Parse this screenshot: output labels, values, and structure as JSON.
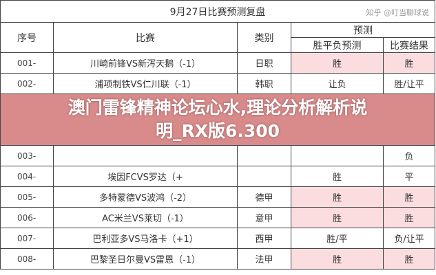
{
  "title": "9月27日比赛预测复盘",
  "headers": {
    "seq": "序号",
    "match": "比赛",
    "category": "类别",
    "prediction": "预测",
    "wdl_prediction": "胜平负预测",
    "result": "比赛结果"
  },
  "rows": [
    {
      "seq": "001-",
      "match": "川崎前锋VS新泻天鹅（-1）",
      "category": "日职",
      "prediction": "胜",
      "result": "胜",
      "highlight": true
    },
    {
      "seq": "002-",
      "match": "浦项制铁VS仁川联（-1）",
      "category": "韩职",
      "prediction": "让负",
      "result": "胜/让平",
      "highlight": false
    },
    {
      "seq": "003-",
      "match": "",
      "category": "",
      "prediction": "",
      "result": "负",
      "highlight": false
    },
    {
      "seq": "004-",
      "match": "埃因FCVS罗达（+",
      "category": "",
      "prediction": "胜",
      "result": "平",
      "highlight": false
    },
    {
      "seq": "005-",
      "match": "多特蒙德VS波鸿（-2）",
      "category": "德甲",
      "prediction": "胜",
      "result": "胜",
      "highlight": true
    },
    {
      "seq": "006-",
      "match": "AC米兰VS莱切（-1）",
      "category": "意甲",
      "prediction": "胜",
      "result": "胜",
      "highlight": true
    },
    {
      "seq": "007-",
      "match": "巴利亚多VS马洛卡（+1）",
      "category": "西甲",
      "prediction": "胜/平",
      "result": "负/让平",
      "highlight": false
    },
    {
      "seq": "008-",
      "match": "巴黎圣日尔曼VS雷恩（-1）",
      "category": "法甲",
      "prediction": "胜",
      "result": "胜",
      "highlight": true
    }
  ],
  "overlay": {
    "line1": "澳门雷锋精神论坛心水,理论分析解析说",
    "line2": "明_RX版6.300"
  },
  "watermark": "知乎 @叮当聊球说",
  "colors": {
    "highlight": "#fbdde0",
    "band": "#cd5555"
  }
}
